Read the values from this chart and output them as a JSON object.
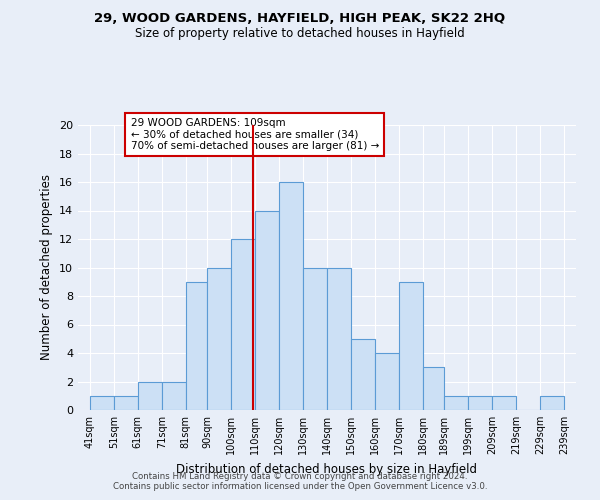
{
  "title1": "29, WOOD GARDENS, HAYFIELD, HIGH PEAK, SK22 2HQ",
  "title2": "Size of property relative to detached houses in Hayfield",
  "xlabel": "Distribution of detached houses by size in Hayfield",
  "ylabel": "Number of detached properties",
  "bar_left_edges": [
    41,
    51,
    61,
    71,
    81,
    90,
    100,
    110,
    120,
    130,
    140,
    150,
    160,
    170,
    180,
    189,
    199,
    209,
    219,
    229
  ],
  "bar_widths": [
    10,
    10,
    10,
    10,
    9,
    10,
    10,
    10,
    10,
    10,
    10,
    10,
    10,
    10,
    9,
    10,
    10,
    10,
    10,
    10
  ],
  "bar_heights": [
    1,
    1,
    2,
    2,
    9,
    10,
    12,
    14,
    16,
    10,
    10,
    5,
    4,
    9,
    3,
    1,
    1,
    1,
    0,
    1
  ],
  "bar_color": "#cce0f5",
  "bar_edge_color": "#5b9bd5",
  "marker_x": 109,
  "marker_color": "#cc0000",
  "annotation_text": "29 WOOD GARDENS: 109sqm\n← 30% of detached houses are smaller (34)\n70% of semi-detached houses are larger (81) →",
  "annotation_box_color": "#ffffff",
  "annotation_box_edge": "#cc0000",
  "ylim": [
    0,
    20
  ],
  "yticks": [
    0,
    2,
    4,
    6,
    8,
    10,
    12,
    14,
    16,
    18,
    20
  ],
  "xtick_labels": [
    "41sqm",
    "51sqm",
    "61sqm",
    "71sqm",
    "81sqm",
    "90sqm",
    "100sqm",
    "110sqm",
    "120sqm",
    "130sqm",
    "140sqm",
    "150sqm",
    "160sqm",
    "170sqm",
    "180sqm",
    "189sqm",
    "199sqm",
    "209sqm",
    "219sqm",
    "229sqm",
    "239sqm"
  ],
  "xtick_positions": [
    41,
    51,
    61,
    71,
    81,
    90,
    100,
    110,
    120,
    130,
    140,
    150,
    160,
    170,
    180,
    189,
    199,
    209,
    219,
    229,
    239
  ],
  "footer1": "Contains HM Land Registry data © Crown copyright and database right 2024.",
  "footer2": "Contains public sector information licensed under the Open Government Licence v3.0.",
  "background_color": "#e8eef8",
  "grid_color": "#ffffff"
}
